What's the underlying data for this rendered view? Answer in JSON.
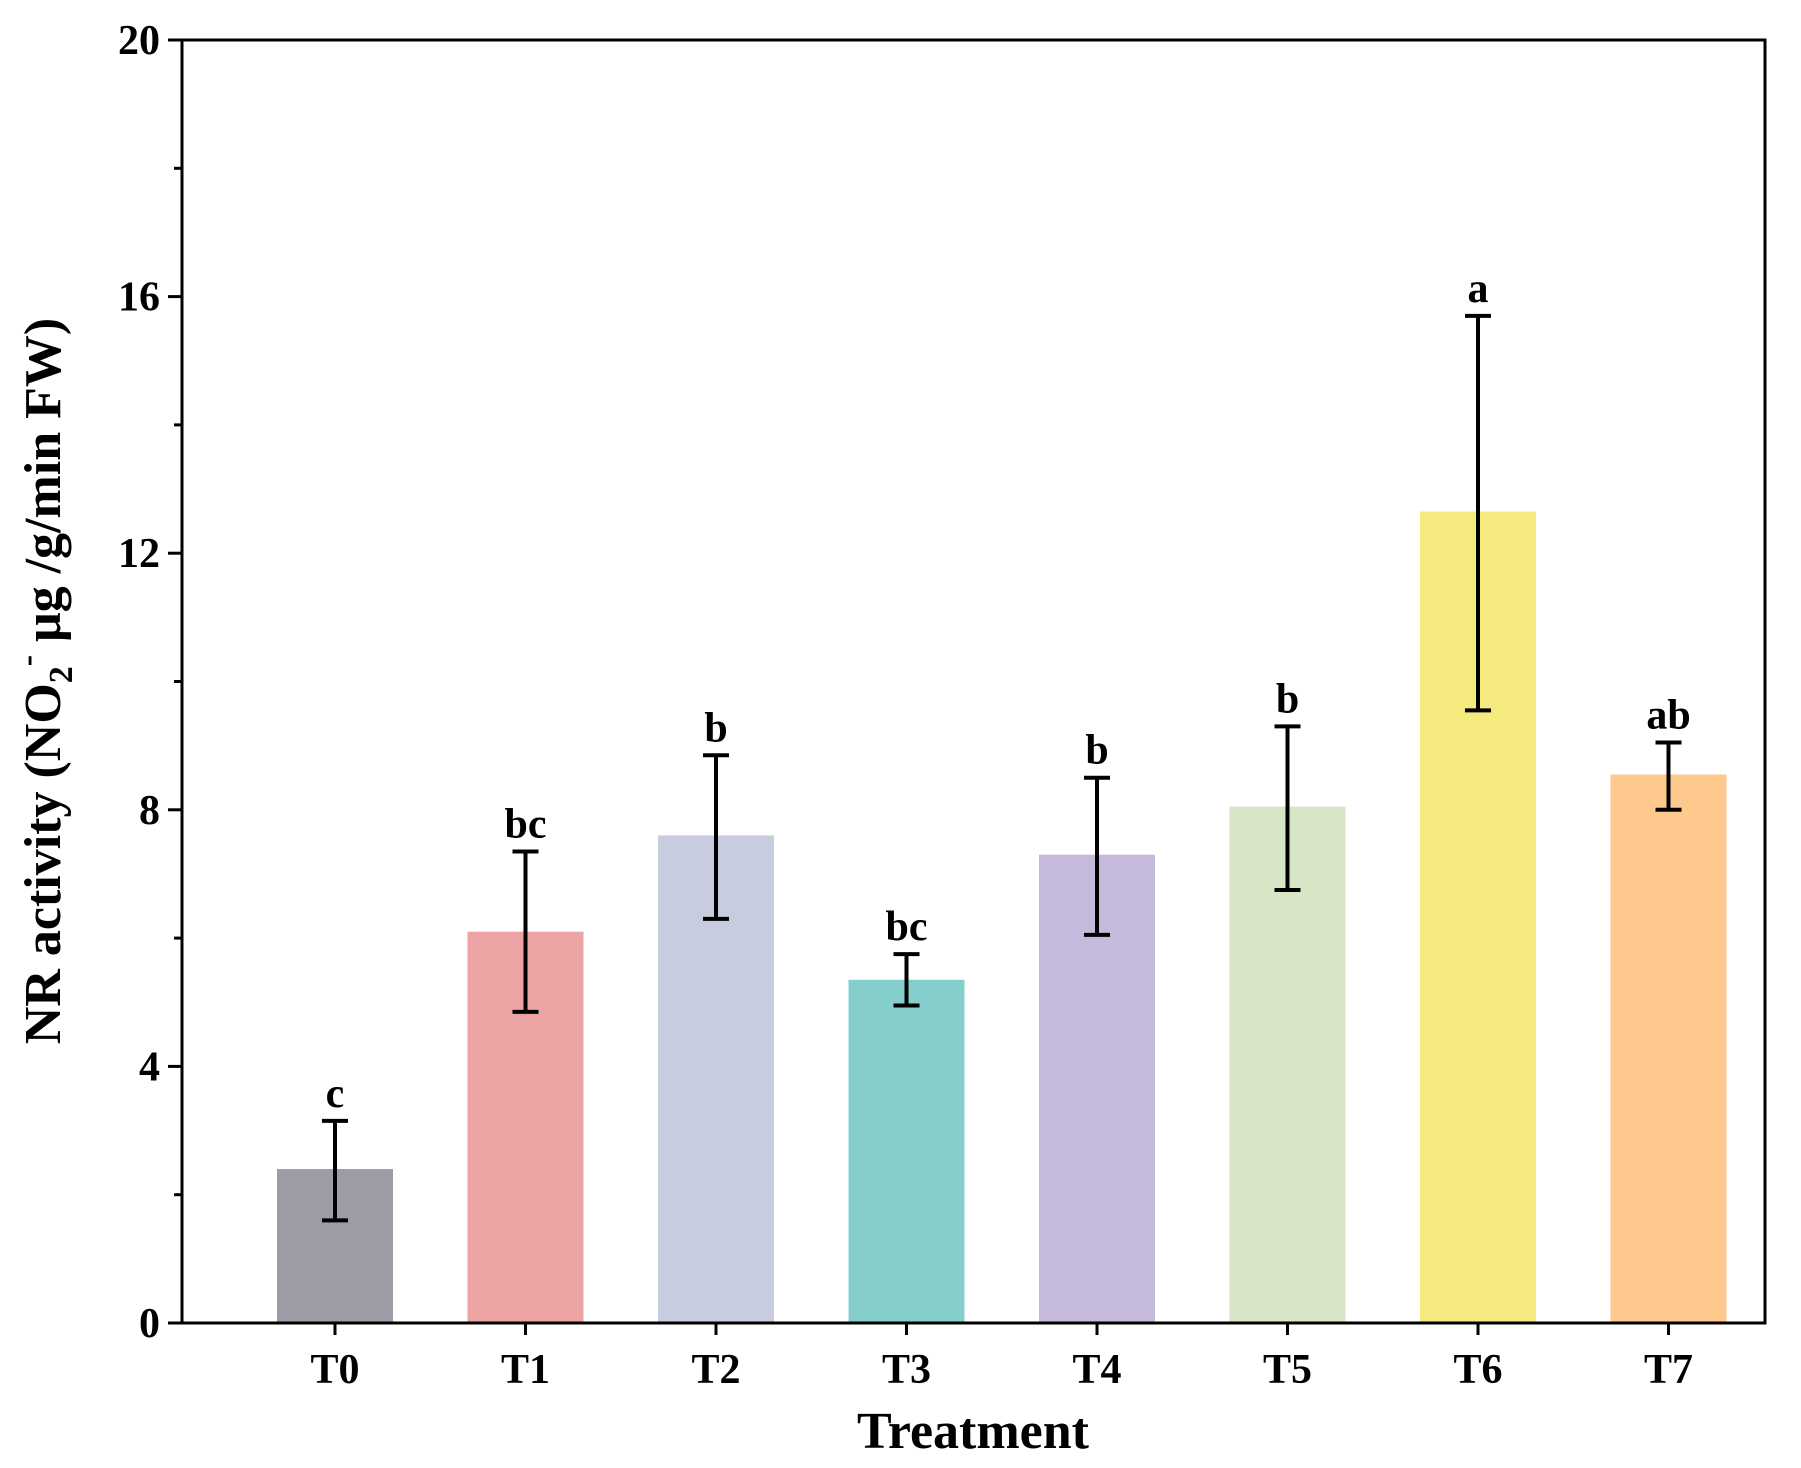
{
  "chart_data": {
    "type": "bar",
    "title": "",
    "xlabel": "Treatment",
    "ylabel": {
      "prefix": "NR activity (NO",
      "sub": "2",
      "sup": "-",
      "suffix": " μg /g/min FW)"
    },
    "categories": [
      "T0",
      "T1",
      "T2",
      "T3",
      "T4",
      "T5",
      "T6",
      "T7"
    ],
    "values": [
      2.4,
      6.1,
      7.6,
      5.35,
      7.3,
      8.05,
      12.65,
      8.55
    ],
    "error_upper": [
      3.15,
      7.35,
      8.85,
      5.75,
      8.5,
      9.3,
      15.7,
      9.05
    ],
    "error_lower": [
      1.6,
      4.85,
      6.3,
      4.95,
      6.05,
      6.75,
      9.55,
      8.0
    ],
    "significance": [
      "c",
      "bc",
      "b",
      "bc",
      "b",
      "b",
      "a",
      "ab"
    ],
    "colors": [
      "#9b9ca6",
      "#eba3a4",
      "#c7cddf",
      "#84cfcb",
      "#c5b9dc",
      "#d7e6c6",
      "#f5ea7e",
      "#fdc98c"
    ],
    "ylim": [
      0,
      20
    ],
    "yticks": [
      "0",
      "4",
      "8",
      "12",
      "16",
      "20"
    ],
    "grid": false,
    "legend": "none"
  }
}
